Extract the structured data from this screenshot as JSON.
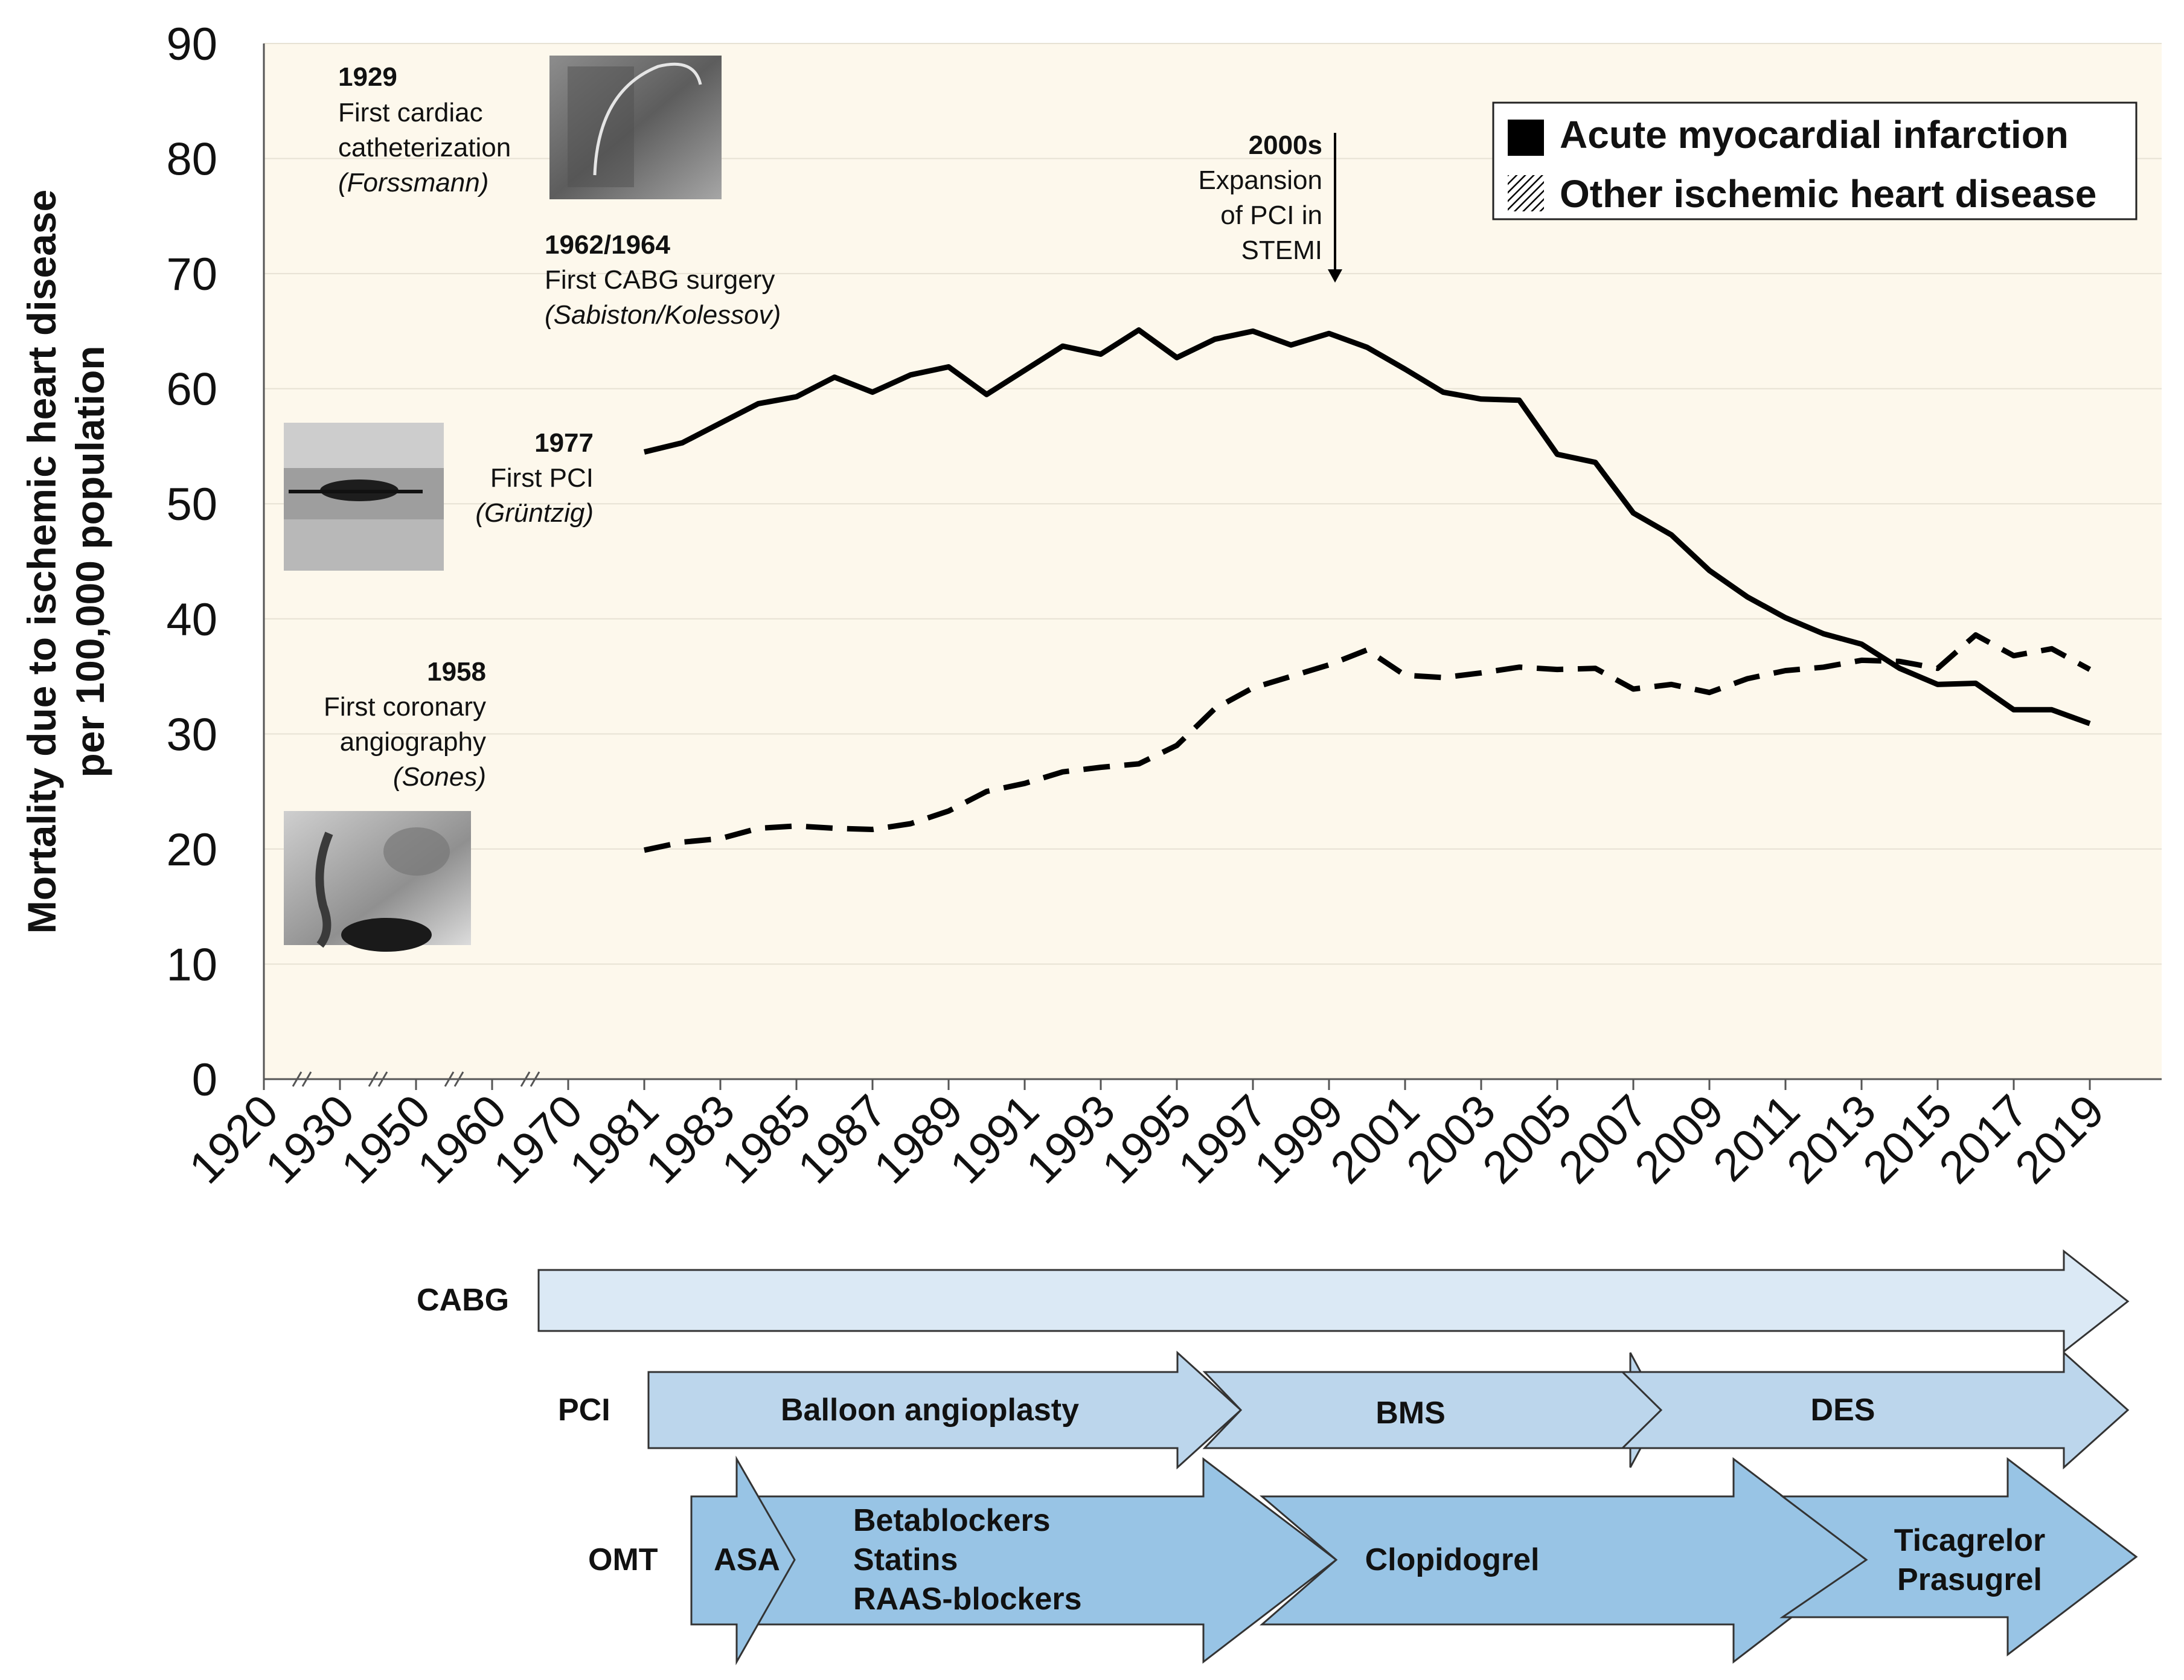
{
  "colors": {
    "plot_background": "#fdf8ec",
    "cabg_arrow": "#dbe9f5",
    "pci_arrow": "#bcd6ec",
    "omt_arrow": "#98c4e5",
    "series_line": "#000000"
  },
  "chart_data": {
    "type": "line",
    "ylabel": [
      "Mortality due to ischemic heart disease",
      "per 100,000 population"
    ],
    "ylim": [
      0,
      90
    ],
    "yticks": [
      0,
      10,
      20,
      30,
      40,
      50,
      60,
      70,
      80,
      90
    ],
    "xtick_labels": [
      "1920",
      "1930",
      "1950",
      "1960",
      "1970",
      "1981",
      "1983",
      "1985",
      "1987",
      "1989",
      "1991",
      "1993",
      "1995",
      "1997",
      "1999",
      "2001",
      "2003",
      "2005",
      "2007",
      "2009",
      "2011",
      "2013",
      "2015",
      "2017",
      "2019"
    ],
    "axis_breaks": true,
    "x_years": [
      1980,
      1981,
      1982,
      1983,
      1984,
      1985,
      1986,
      1987,
      1988,
      1989,
      1990,
      1991,
      1992,
      1993,
      1994,
      1995,
      1996,
      1997,
      1998,
      1999,
      2000,
      2001,
      2002,
      2003,
      2004,
      2005,
      2006,
      2007,
      2008,
      2009,
      2010,
      2011,
      2012,
      2013,
      2014,
      2015,
      2016,
      2017,
      2018
    ],
    "series": [
      {
        "name": "Acute myocardial infarction",
        "style": "solid",
        "values": [
          54.5,
          55.3,
          57,
          58.7,
          59.3,
          61,
          59.7,
          61.2,
          61.9,
          59.5,
          61.6,
          63.7,
          63,
          65.1,
          62.7,
          64.3,
          65,
          63.8,
          64.8,
          63.6,
          61.7,
          59.7,
          59.1,
          59,
          54.3,
          53.6,
          49.2,
          47.3,
          44.2,
          41.9,
          40.1,
          38.7,
          37.8,
          35.7,
          34.3,
          34.4,
          32.1,
          32.1,
          30.9
        ]
      },
      {
        "name": "Other ischemic heart disease",
        "style": "dashed",
        "values": [
          19.9,
          20.6,
          20.9,
          21.8,
          22,
          21.8,
          21.7,
          22.2,
          23.3,
          25,
          25.7,
          26.7,
          27.1,
          27.4,
          29,
          32.2,
          34,
          35,
          36,
          37.3,
          35.1,
          34.9,
          35.3,
          35.8,
          35.6,
          35.7,
          33.9,
          34.3,
          33.6,
          34.8,
          35.5,
          35.8,
          36.4,
          36.3,
          35.7,
          38.6,
          36.8,
          37.4,
          35.6
        ]
      }
    ],
    "annotations": [
      {
        "year": "1929",
        "lines": [
          "First cardiac",
          "catheterization"
        ],
        "author": "(Forssmann)"
      },
      {
        "year": "1962/1964",
        "lines": [
          "First CABG surgery"
        ],
        "author": "(Sabiston/Kolessov)"
      },
      {
        "year": "1977",
        "lines": [
          "First PCI"
        ],
        "author": "(Grüntzig)"
      },
      {
        "year": "1958",
        "lines": [
          "First coronary",
          "angiography"
        ],
        "author": "(Sones)"
      },
      {
        "year": "2000s",
        "lines": [
          "Expansion",
          "of PCI in",
          "STEMI"
        ],
        "author": ""
      }
    ],
    "legend": [
      "Acute myocardial infarction",
      "Other ischemic heart disease"
    ],
    "legend_position": "top-right"
  },
  "therapies": {
    "cabg": {
      "label": "CABG"
    },
    "pci": {
      "label": "PCI",
      "phases": [
        "Balloon angioplasty",
        "BMS",
        "DES"
      ]
    },
    "omt": {
      "label": "OMT",
      "phases": [
        [
          "ASA"
        ],
        [
          "Betablockers",
          "Statins",
          "RAAS-blockers"
        ],
        [
          "Clopidogrel"
        ],
        [
          "Ticagrelor",
          "Prasugrel"
        ]
      ]
    }
  }
}
